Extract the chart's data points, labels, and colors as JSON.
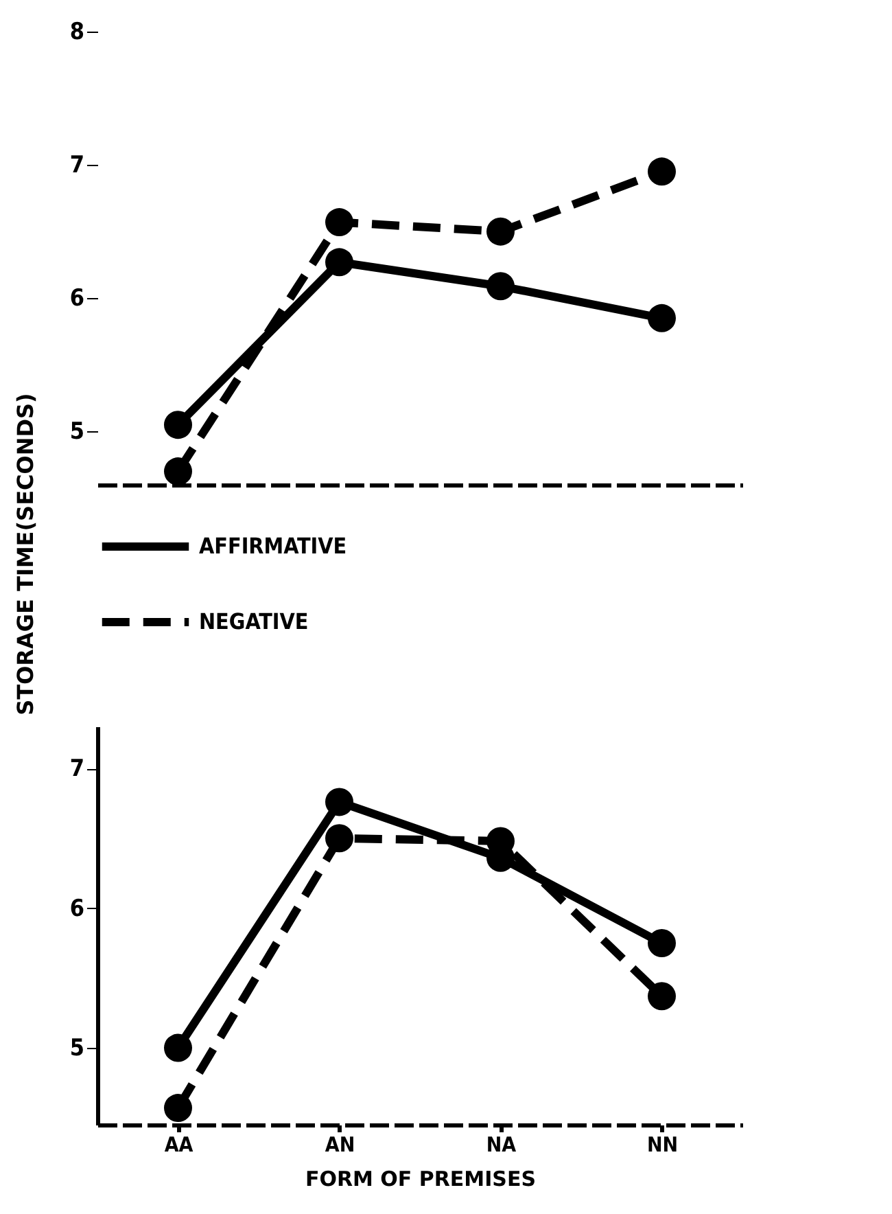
{
  "chart_data": [
    {
      "type": "line",
      "ylabel": "STORAGE TIME(SECONDS)",
      "categories": [
        null,
        null,
        null,
        null
      ],
      "ylim": [
        4.6,
        8
      ],
      "yticks": [
        5,
        6,
        7,
        8
      ],
      "tick_labels": "y",
      "grid": false,
      "legend": "bottom",
      "marker": "circle",
      "series": [
        {
          "name": "AFFIRMATIVE",
          "color": "#000000",
          "line_style": "solid",
          "values": [
            5.05,
            6.27,
            6.09,
            5.85
          ]
        },
        {
          "name": "NEGATIVE",
          "color": "#000000",
          "line_style": "dashed",
          "values": [
            4.7,
            6.57,
            6.5,
            6.95
          ]
        }
      ]
    },
    {
      "type": "line",
      "xlabel": "FORM OF PREMISES",
      "categories": [
        "AA",
        "AN",
        "NA",
        "NN"
      ],
      "ylim": [
        4.45,
        7.3
      ],
      "yticks": [
        5,
        6,
        7
      ],
      "grid": false,
      "marker": "circle",
      "series": [
        {
          "color": "#000000",
          "line_style": "solid",
          "values": [
            5.0,
            6.76,
            6.36,
            5.75
          ]
        },
        {
          "color": "#000000",
          "line_style": "dashed",
          "values": [
            4.57,
            6.5,
            6.48,
            5.37
          ]
        }
      ]
    }
  ]
}
